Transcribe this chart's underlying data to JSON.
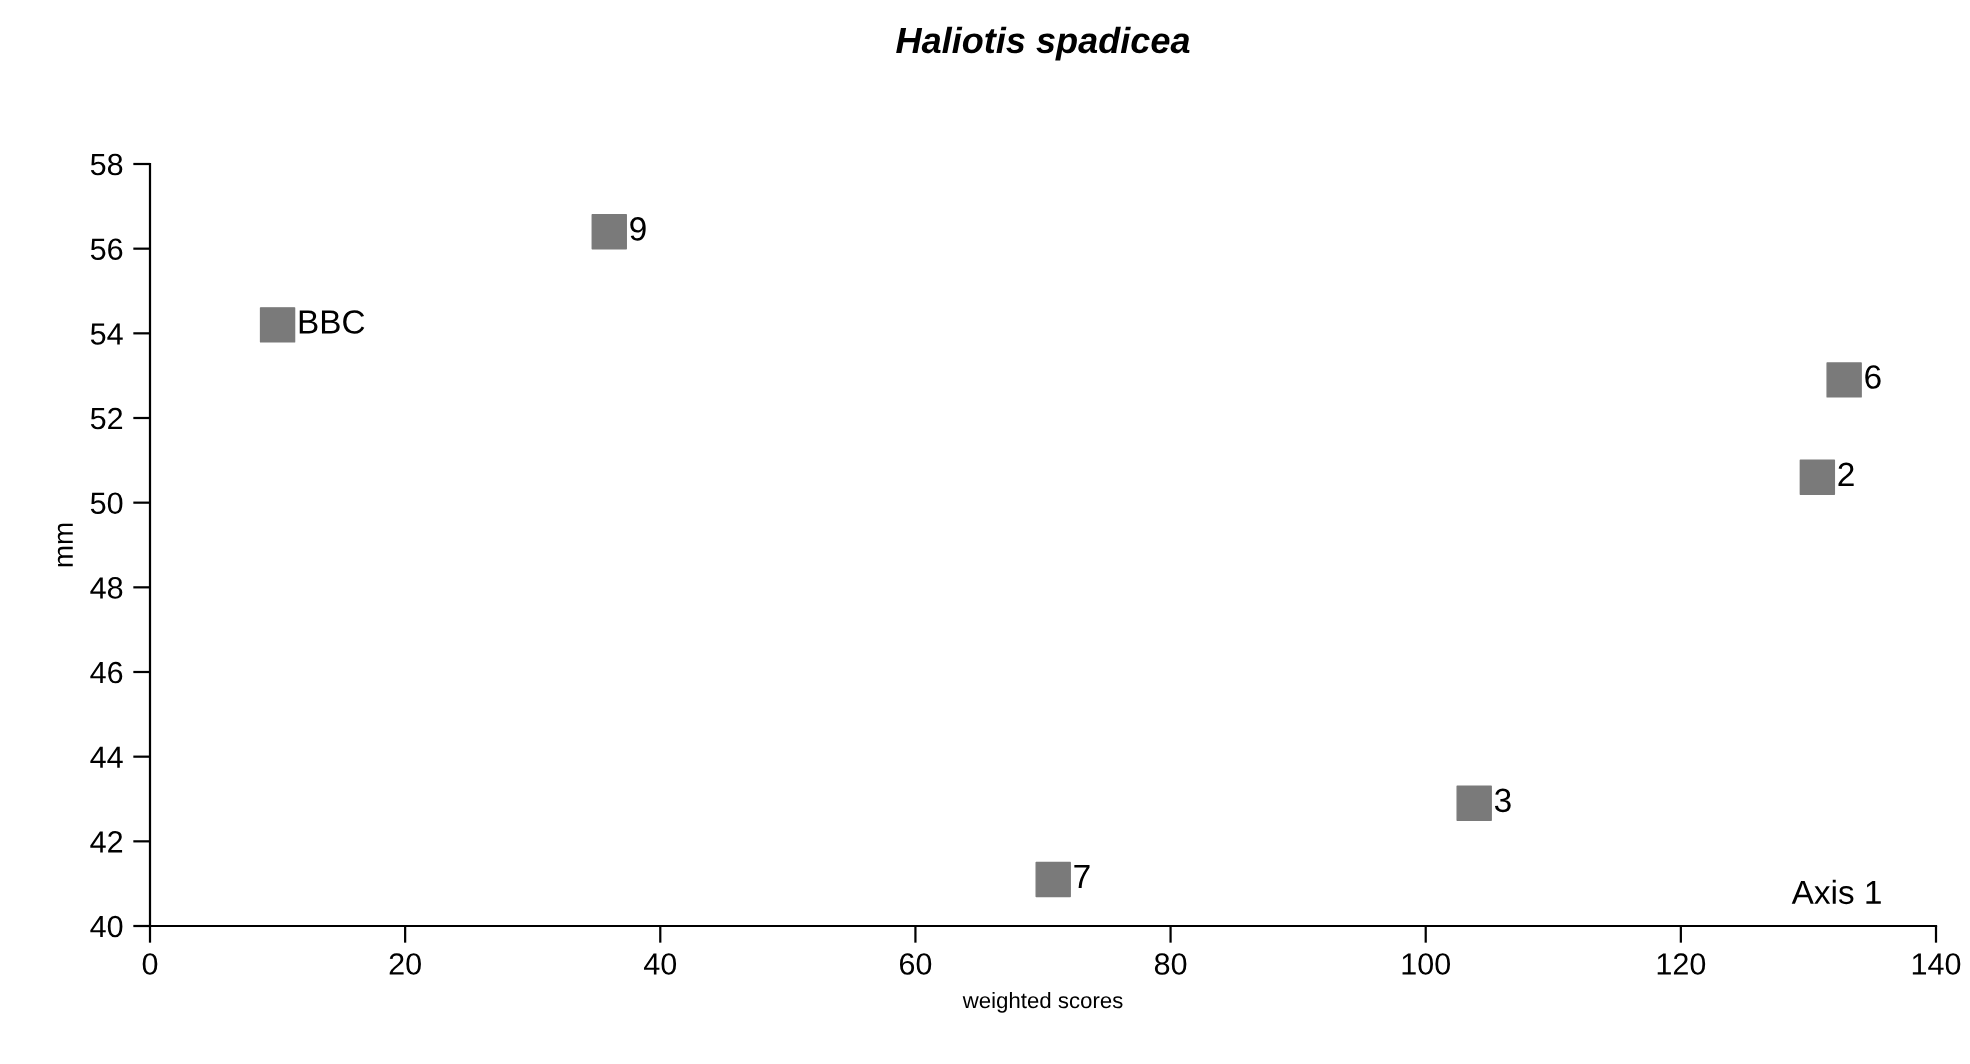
{
  "chart_data": {
    "type": "scatter",
    "title": "Haliotis spadicea",
    "xlabel": "weighted scores",
    "ylabel": "mm",
    "series": [
      {
        "color": "#7a7a7a",
        "x": [
          10.0,
          36.0,
          132.8,
          130.7,
          103.8,
          70.8
        ],
        "values": [
          54.2,
          56.4,
          52.9,
          50.6,
          42.9,
          41.1
        ]
      }
    ],
    "annotations": [
      {
        "text": "BBC",
        "x": 10.0,
        "y": 54.2
      },
      {
        "text": "9",
        "x": 36.0,
        "y": 56.4
      },
      {
        "text": "6",
        "x": 132.8,
        "y": 52.9
      },
      {
        "text": "2",
        "x": 130.7,
        "y": 50.6
      },
      {
        "text": "3",
        "x": 103.8,
        "y": 42.9
      },
      {
        "text": "7",
        "x": 70.8,
        "y": 41.1
      },
      "Axis 1"
    ],
    "marker": "square",
    "grid": false,
    "legend": false,
    "xlim": [
      0,
      140
    ],
    "xticks": [
      0,
      20,
      40,
      60,
      80,
      100,
      120,
      140
    ],
    "ylim": [
      40,
      58
    ],
    "yticks": [
      40,
      42,
      44,
      46,
      48,
      50,
      52,
      54,
      56,
      58
    ]
  }
}
